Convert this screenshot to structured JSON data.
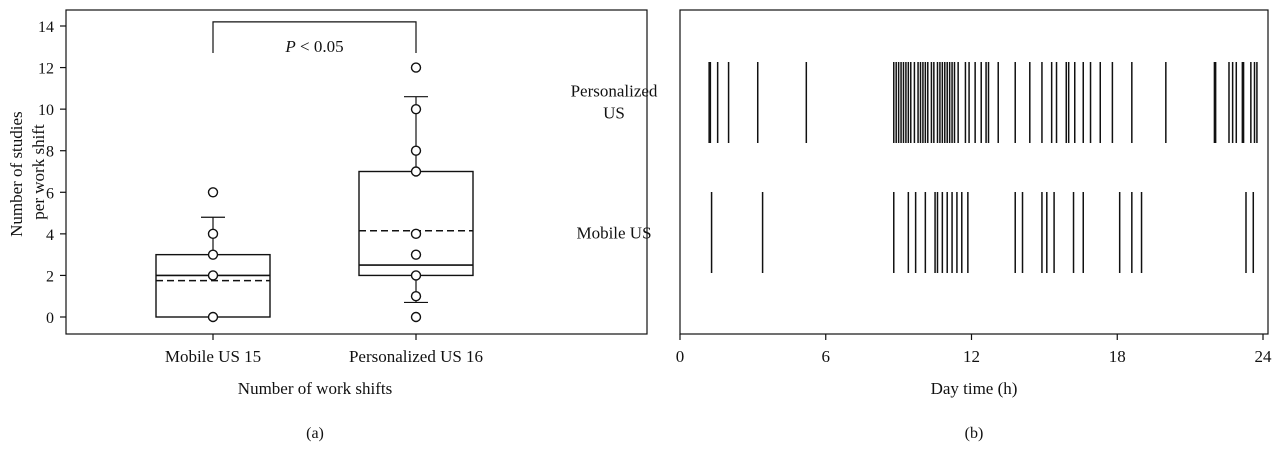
{
  "chart_data": [
    {
      "panel": "(a)",
      "type": "box",
      "xlabel": "Number of work shifts",
      "ylabel": "Number of studies per work shift",
      "ylim": [
        0,
        14
      ],
      "yticks": [
        "0",
        "2",
        "4",
        "6",
        "8",
        "10",
        "12",
        "14"
      ],
      "categories": [
        "Mobile US 15",
        "Personalized US 16"
      ],
      "boxes": [
        {
          "q1": 0,
          "median": 2,
          "mean": 1.75,
          "q3": 3,
          "whisker_low": 0,
          "whisker_high": 4.8,
          "points": [
            0,
            2,
            3,
            4,
            6
          ]
        },
        {
          "q1": 2,
          "median": 2.5,
          "mean": 4.15,
          "q3": 7,
          "whisker_low": 0.7,
          "whisker_high": 10.6,
          "points": [
            0,
            1,
            2,
            3,
            4,
            7,
            8,
            10,
            12
          ]
        }
      ],
      "annotation": "P < 0.05"
    },
    {
      "panel": "(b)",
      "type": "event",
      "xlabel": "Day time (h)",
      "xlim": [
        0,
        24
      ],
      "xticks": [
        "0",
        "6",
        "12",
        "18",
        "24"
      ],
      "series": [
        {
          "name": "Personalized US",
          "times": [
            1.2,
            1.25,
            1.55,
            2.0,
            3.2,
            5.2,
            8.8,
            8.9,
            9.0,
            9.1,
            9.2,
            9.3,
            9.4,
            9.5,
            9.65,
            9.8,
            9.9,
            10.0,
            10.1,
            10.2,
            10.35,
            10.45,
            10.6,
            10.7,
            10.8,
            10.9,
            11.0,
            11.1,
            11.2,
            11.3,
            11.45,
            11.75,
            11.9,
            12.15,
            12.4,
            12.6,
            12.7,
            13.1,
            13.8,
            14.4,
            14.9,
            15.3,
            15.5,
            15.9,
            16.0,
            16.25,
            16.6,
            16.9,
            17.3,
            17.8,
            18.6,
            20.0,
            22.0,
            22.05,
            22.6,
            22.75,
            22.9,
            23.15,
            23.2,
            23.5,
            23.65,
            23.75
          ]
        },
        {
          "name": "Mobile US",
          "times": [
            1.3,
            3.4,
            8.8,
            9.4,
            9.7,
            10.1,
            10.5,
            10.6,
            10.8,
            11.0,
            11.2,
            11.4,
            11.6,
            11.85,
            13.8,
            14.1,
            14.9,
            15.1,
            15.4,
            16.2,
            16.6,
            18.1,
            18.6,
            19.0,
            23.3,
            23.6
          ]
        }
      ]
    }
  ]
}
